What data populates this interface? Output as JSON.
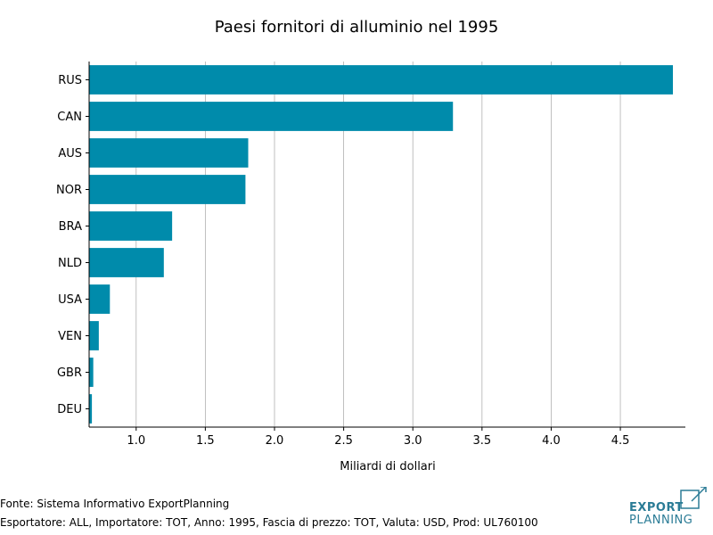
{
  "chart_data": {
    "type": "bar",
    "orientation": "horizontal",
    "title": "Paesi fornitori di alluminio nel 1995",
    "xlabel": "Miliardi di dollari",
    "ylabel": "",
    "categories": [
      "RUS",
      "CAN",
      "AUS",
      "NOR",
      "BRA",
      "NLD",
      "USA",
      "VEN",
      "GBR",
      "DEU"
    ],
    "values": [
      4.88,
      3.29,
      1.81,
      1.79,
      1.26,
      1.2,
      0.81,
      0.73,
      0.69,
      0.68
    ],
    "xlim": [
      0.66,
      4.97
    ],
    "xticks": [
      1.0,
      1.5,
      2.0,
      2.5,
      3.0,
      3.5,
      4.0,
      4.5
    ],
    "xtick_labels": [
      "1.0",
      "1.5",
      "2.0",
      "2.5",
      "3.0",
      "3.5",
      "4.0",
      "4.5"
    ],
    "grid": "vertical",
    "bar_color": "#008BAB"
  },
  "footer": {
    "source": "Fonte: Sistema Informativo ExportPlanning",
    "details": "Esportatore: ALL, Importatore: TOT, Anno: 1995, Fascia di prezzo: TOT, Valuta: USD, Prod: UL760100"
  },
  "logo": {
    "line1": "EXPORT",
    "line2": "PLANNING",
    "color": "#2B7C96"
  }
}
